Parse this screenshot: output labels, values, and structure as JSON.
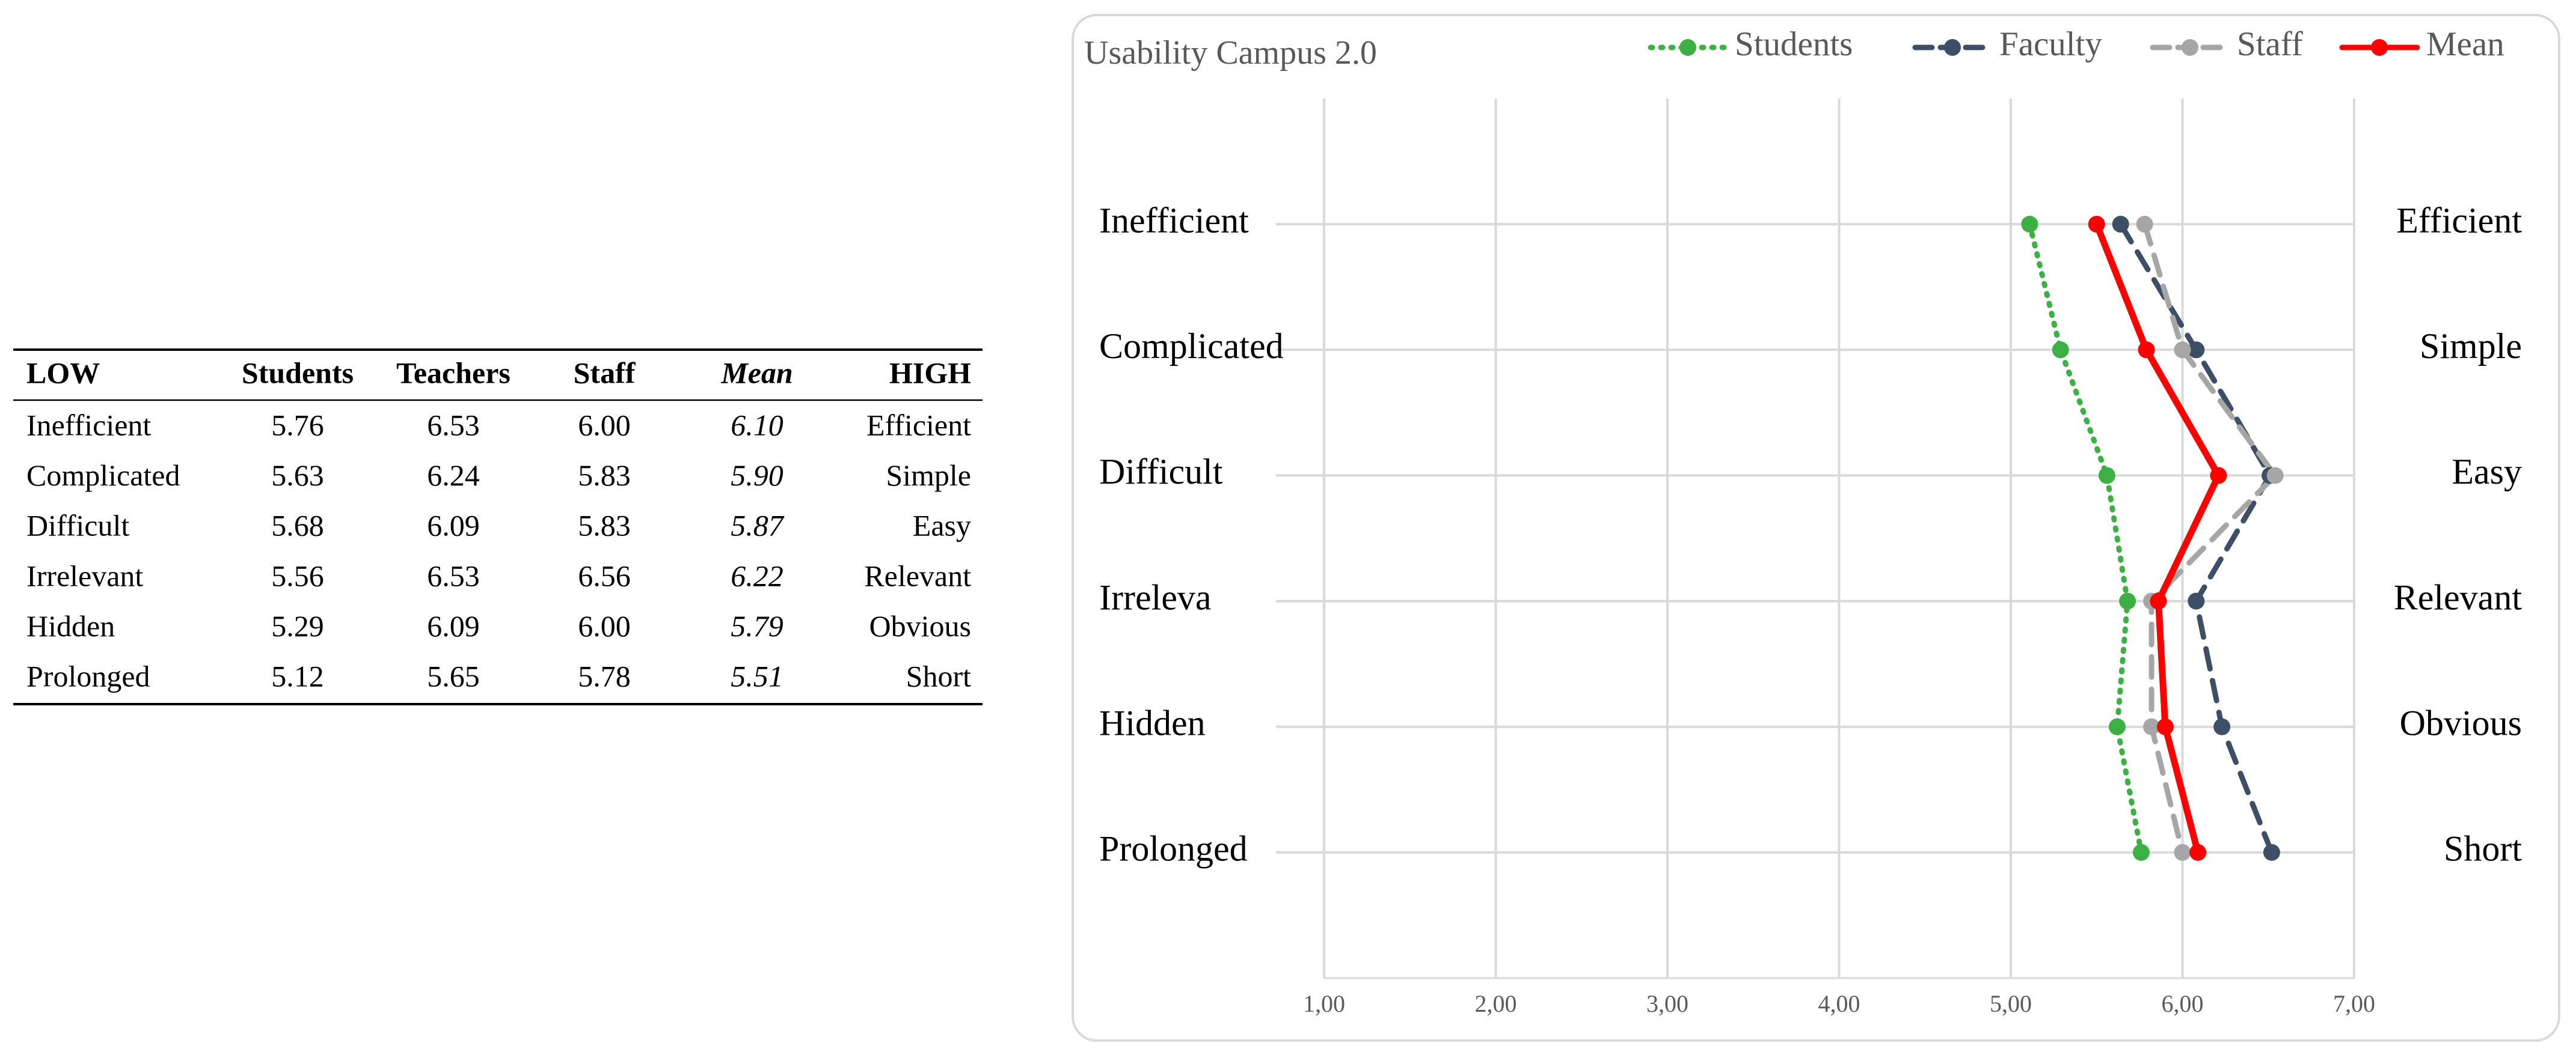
{
  "table": {
    "header": [
      "LOW",
      "Students",
      "Teachers",
      "Staff",
      "Mean",
      "HIGH"
    ],
    "rows": [
      [
        "Inefficient",
        "5.76",
        "6.53",
        "6.00",
        "6.10",
        "Efficient"
      ],
      [
        "Complicated",
        "5.63",
        "6.24",
        "5.83",
        "5.90",
        "Simple"
      ],
      [
        "Difficult",
        "5.68",
        "6.09",
        "5.83",
        "5.87",
        "Easy"
      ],
      [
        "Irrelevant",
        "5.56",
        "6.53",
        "6.56",
        "6.22",
        "Relevant"
      ],
      [
        "Hidden",
        "5.29",
        "6.09",
        "6.00",
        "5.79",
        "Obvious"
      ],
      [
        "Prolonged",
        "5.12",
        "5.65",
        "5.78",
        "5.51",
        "Short"
      ]
    ]
  },
  "chart_data": {
    "type": "line",
    "title": "Usability Campus 2.0",
    "categories": [
      "Inefficient",
      "Complicated",
      "Difficult",
      "Irreleva",
      "Hidden",
      "Prolonged"
    ],
    "right_labels": [
      "Efficient",
      "Simple",
      "Easy",
      "Relevant",
      "Obvious",
      "Short"
    ],
    "series": [
      {
        "name": "Students",
        "color": "#3cb043",
        "style": "dotted",
        "values": [
          5.11,
          5.29,
          5.56,
          5.68,
          5.62,
          5.76
        ]
      },
      {
        "name": "Faculty",
        "color": "#3d4f66",
        "style": "dashed",
        "values": [
          5.64,
          6.08,
          6.51,
          6.08,
          6.23,
          6.52
        ]
      },
      {
        "name": "Staff",
        "color": "#a6a6a6",
        "style": "dashed",
        "values": [
          5.78,
          6.0,
          6.54,
          5.82,
          5.82,
          6.0
        ]
      },
      {
        "name": "Mean",
        "color": "#ff0000",
        "style": "solid",
        "values": [
          5.5,
          5.79,
          6.21,
          5.86,
          5.9,
          6.09
        ]
      }
    ],
    "xlim": [
      1,
      7
    ],
    "xticks": [
      {
        "value": 1,
        "label": "1,00"
      },
      {
        "value": 2,
        "label": "2,00"
      },
      {
        "value": 3,
        "label": "3,00"
      },
      {
        "value": 4,
        "label": "4,00"
      },
      {
        "value": 5,
        "label": "5,00"
      },
      {
        "value": 6,
        "label": "6,00"
      },
      {
        "value": 7,
        "label": "7,00"
      }
    ],
    "grid": true,
    "legend": "top"
  }
}
